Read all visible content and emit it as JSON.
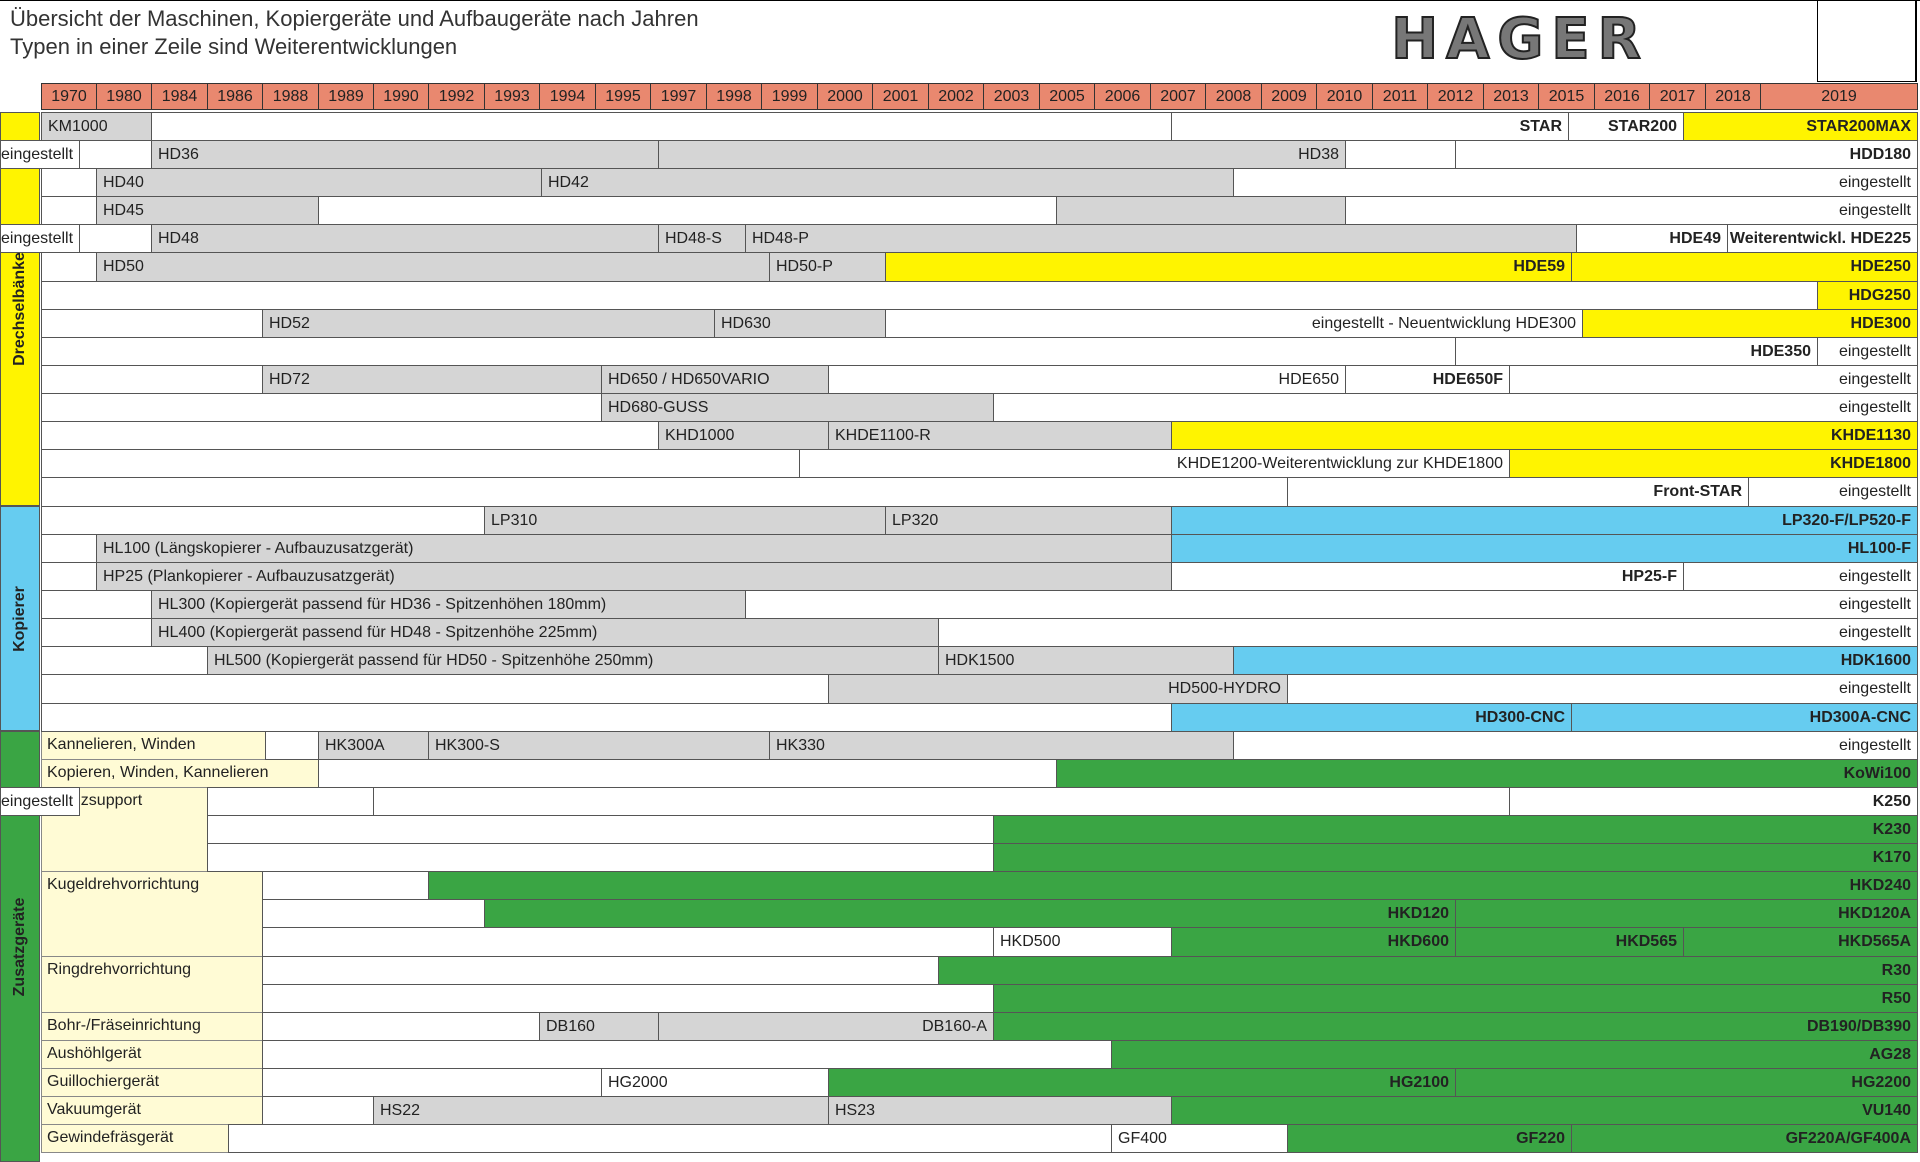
{
  "header": {
    "title": "Übersicht der Maschinen, Kopiergeräte und Aufbaugeräte nach Jahren",
    "subtitle": "Typen in einer Zeile sind Weiterentwicklungen",
    "logo": "HAGER"
  },
  "years": [
    "1970",
    "1980",
    "1984",
    "1986",
    "1988",
    "1989",
    "1990",
    "1992",
    "1993",
    "1994",
    "1995",
    "1997",
    "1998",
    "1999",
    "2000",
    "2001",
    "2002",
    "2003",
    "2005",
    "2006",
    "2007",
    "2008",
    "2009",
    "2010",
    "2011",
    "2012",
    "2013",
    "2015",
    "2016",
    "2017",
    "2018",
    "2019"
  ],
  "colors": {
    "white": "#ffffff",
    "gray": "#d5d5d5",
    "yellow": "#fff400",
    "cyan": "#66ccf0",
    "green": "#3aa544",
    "year_header": "#e9886f",
    "subcategory": "#fffbd5"
  },
  "categories": [
    {
      "label": "Drechselbänke",
      "color": "#fff400"
    },
    {
      "label": "Kopierer",
      "color": "#66ccf0"
    },
    {
      "label": "Zusatzgeräte",
      "color": "#3aa544"
    }
  ],
  "subcategories": [
    {
      "label": "Kannelieren, Winden"
    },
    {
      "label": "Kopieren, Winden, Kannelieren"
    },
    {
      "label": "Kreuzsupport"
    },
    {
      "label": "Kugeldrehvorrichtung"
    },
    {
      "label": "Ringdrehvorrichtung"
    },
    {
      "label": "Bohr-/Fräseinrichtung"
    },
    {
      "label": "Aushöhlgerät"
    },
    {
      "label": "Guillochiergerät"
    },
    {
      "label": "Vakuumgerät"
    },
    {
      "label": "Gewindefräsgerät"
    }
  ],
  "rows": [
    [
      {
        "text": "KM1000",
        "c": "gray"
      },
      {
        "text": "",
        "c": "white"
      },
      {
        "text": "STAR",
        "c": "white",
        "al": "r",
        "b": true
      },
      {
        "text": "STAR200",
        "c": "white",
        "al": "r",
        "b": true
      },
      {
        "text": "STAR200MAX",
        "c": "yellow",
        "al": "r",
        "b": true
      }
    ],
    [
      {
        "text": "",
        "c": "white"
      },
      {
        "text": "HD36",
        "c": "gray"
      },
      {
        "text": "HD38",
        "c": "gray",
        "al": "r"
      },
      {
        "text": "",
        "c": "white"
      },
      {
        "text": "HDD180",
        "c": "white",
        "al": "r",
        "b": true
      },
      {
        "text": "eingestellt",
        "c": "white",
        "al": "r"
      }
    ],
    [
      {
        "text": "",
        "c": "white"
      },
      {
        "text": "HD40",
        "c": "gray"
      },
      {
        "text": "HD42",
        "c": "gray"
      },
      {
        "text": "eingestellt",
        "c": "white",
        "al": "r"
      }
    ],
    [
      {
        "text": "",
        "c": "white"
      },
      {
        "text": "HD45",
        "c": "gray"
      },
      {
        "text": "",
        "c": "white"
      },
      {
        "text": "",
        "c": "gray"
      },
      {
        "text": "eingestellt",
        "c": "white",
        "al": "r"
      }
    ],
    [
      {
        "text": "",
        "c": "white"
      },
      {
        "text": "HD48",
        "c": "gray"
      },
      {
        "text": "HD48-S",
        "c": "gray"
      },
      {
        "text": "HD48-P",
        "c": "gray"
      },
      {
        "text": "HDE49",
        "c": "white",
        "al": "r",
        "b": true
      },
      {
        "text": "Weiterentwickl. HDE225",
        "c": "white",
        "al": "r",
        "b": true
      },
      {
        "text": "eingestellt",
        "c": "white",
        "al": "r"
      }
    ],
    [
      {
        "text": "",
        "c": "white"
      },
      {
        "text": "HD50",
        "c": "gray"
      },
      {
        "text": "HD50-P",
        "c": "gray"
      },
      {
        "text": "HDE59",
        "c": "yellow",
        "al": "r",
        "b": true
      },
      {
        "text": "HDE250",
        "c": "yellow",
        "al": "r",
        "b": true
      }
    ],
    [
      {
        "text": "",
        "c": "white"
      },
      {
        "text": "HDG250",
        "c": "yellow",
        "al": "r",
        "b": true
      }
    ],
    [
      {
        "text": "",
        "c": "white"
      },
      {
        "text": "HD52",
        "c": "gray"
      },
      {
        "text": "HD630",
        "c": "gray"
      },
      {
        "text": "eingestellt - Neuentwicklung HDE300",
        "c": "white",
        "al": "r"
      },
      {
        "text": "HDE300",
        "c": "yellow",
        "al": "r",
        "b": true
      }
    ],
    [
      {
        "text": "",
        "c": "white"
      },
      {
        "text": "HDE350",
        "c": "white",
        "al": "r",
        "b": true
      },
      {
        "text": "eingestellt",
        "c": "white",
        "al": "r"
      }
    ],
    [
      {
        "text": "",
        "c": "white"
      },
      {
        "text": "HD72",
        "c": "gray"
      },
      {
        "text": "HD650 / HD650VARIO",
        "c": "gray"
      },
      {
        "text": "HDE650",
        "c": "white",
        "al": "r"
      },
      {
        "text": "HDE650F",
        "c": "white",
        "al": "r",
        "b": true
      },
      {
        "text": "eingestellt",
        "c": "white",
        "al": "r"
      }
    ],
    [
      {
        "text": "",
        "c": "white"
      },
      {
        "text": "HD680-GUSS",
        "c": "gray"
      },
      {
        "text": "eingestellt",
        "c": "white",
        "al": "r"
      }
    ],
    [
      {
        "text": "",
        "c": "white"
      },
      {
        "text": "KHD1000",
        "c": "gray"
      },
      {
        "text": "KHDE1100-R",
        "c": "gray"
      },
      {
        "text": "KHDE1130",
        "c": "yellow",
        "al": "r",
        "b": true
      }
    ],
    [
      {
        "text": "",
        "c": "white"
      },
      {
        "text": "KHDE1200-Weiterentwicklung zur KHDE1800",
        "c": "white",
        "al": "r"
      },
      {
        "text": "KHDE1800",
        "c": "yellow",
        "al": "r",
        "b": true
      }
    ],
    [
      {
        "text": "",
        "c": "white"
      },
      {
        "text": "Front-STAR",
        "c": "white",
        "al": "r",
        "b": true
      },
      {
        "text": "eingestellt",
        "c": "white",
        "al": "r"
      }
    ],
    [
      {
        "text": "",
        "c": "white"
      },
      {
        "text": "LP310",
        "c": "gray"
      },
      {
        "text": "LP320",
        "c": "gray"
      },
      {
        "text": "LP320-F/LP520-F",
        "c": "cyan",
        "al": "r",
        "b": true
      }
    ],
    [
      {
        "text": "",
        "c": "white"
      },
      {
        "text": "HL100 (Längskopierer - Aufbauzusatzgerät)",
        "c": "gray"
      },
      {
        "text": "HL100-F",
        "c": "cyan",
        "al": "r",
        "b": true
      }
    ],
    [
      {
        "text": "",
        "c": "white"
      },
      {
        "text": "HP25 (Plankopierer - Aufbauzusatzgerät)",
        "c": "gray"
      },
      {
        "text": "HP25-F",
        "c": "white",
        "al": "r",
        "b": true
      },
      {
        "text": "eingestellt",
        "c": "white",
        "al": "r"
      }
    ],
    [
      {
        "text": "",
        "c": "white"
      },
      {
        "text": "HL300 (Kopiergerät passend für HD36 - Spitzenhöhen 180mm)",
        "c": "gray"
      },
      {
        "text": "eingestellt",
        "c": "white",
        "al": "r"
      }
    ],
    [
      {
        "text": "",
        "c": "white"
      },
      {
        "text": "HL400 (Kopiergerät passend für HD48 - Spitzenhöhe 225mm)",
        "c": "gray"
      },
      {
        "text": "eingestellt",
        "c": "white",
        "al": "r"
      }
    ],
    [
      {
        "text": "",
        "c": "white"
      },
      {
        "text": "HL500 (Kopiergerät passend für HD50 - Spitzenhöhe 250mm)",
        "c": "gray"
      },
      {
        "text": "HDK1500",
        "c": "gray"
      },
      {
        "text": "HDK1600",
        "c": "cyan",
        "al": "r",
        "b": true
      }
    ],
    [
      {
        "text": "",
        "c": "white"
      },
      {
        "text": "HD500-HYDRO",
        "c": "gray",
        "al": "r"
      },
      {
        "text": "eingestellt",
        "c": "white",
        "al": "r"
      }
    ],
    [
      {
        "text": "",
        "c": "white"
      },
      {
        "text": "HD300-CNC",
        "c": "cyan",
        "al": "r",
        "b": true
      },
      {
        "text": "HD300A-CNC",
        "c": "cyan",
        "al": "r",
        "b": true
      }
    ],
    [
      {
        "text": "",
        "c": "white"
      },
      {
        "text": "HK300A",
        "c": "gray"
      },
      {
        "text": "HK300-S",
        "c": "gray"
      },
      {
        "text": "HK330",
        "c": "gray"
      },
      {
        "text": "eingestellt",
        "c": "white",
        "al": "r"
      }
    ],
    [
      {
        "text": "",
        "c": "white"
      },
      {
        "text": "KoWi100",
        "c": "green",
        "al": "r",
        "b": true
      }
    ],
    [
      {
        "text": "",
        "c": "white"
      },
      {
        "text": "",
        "c": "white"
      },
      {
        "text": "K250",
        "c": "white",
        "al": "r",
        "b": true
      },
      {
        "text": "eingestellt",
        "c": "white",
        "al": "r"
      }
    ],
    [
      {
        "text": "",
        "c": "white"
      },
      {
        "text": "K230",
        "c": "green",
        "al": "r",
        "b": true
      }
    ],
    [
      {
        "text": "",
        "c": "white"
      },
      {
        "text": "K170",
        "c": "green",
        "al": "r",
        "b": true
      }
    ],
    [
      {
        "text": "",
        "c": "white"
      },
      {
        "text": "HKD240",
        "c": "green",
        "al": "r",
        "b": true
      }
    ],
    [
      {
        "text": "",
        "c": "white"
      },
      {
        "text": "HKD120",
        "c": "green",
        "al": "r",
        "b": true
      },
      {
        "text": "HKD120A",
        "c": "green",
        "al": "r",
        "b": true
      }
    ],
    [
      {
        "text": "",
        "c": "white"
      },
      {
        "text": "HKD500",
        "c": "white"
      },
      {
        "text": "HKD600",
        "c": "green",
        "al": "r",
        "b": true
      },
      {
        "text": "HKD565",
        "c": "green",
        "al": "r",
        "b": true
      },
      {
        "text": "HKD565A",
        "c": "green",
        "al": "r",
        "b": true
      }
    ],
    [
      {
        "text": "",
        "c": "white"
      },
      {
        "text": "R30",
        "c": "green",
        "al": "r",
        "b": true
      }
    ],
    [
      {
        "text": "",
        "c": "white"
      },
      {
        "text": "R50",
        "c": "green",
        "al": "r",
        "b": true
      }
    ],
    [
      {
        "text": "",
        "c": "white"
      },
      {
        "text": "DB160",
        "c": "gray"
      },
      {
        "text": "DB160-A",
        "c": "gray",
        "al": "r"
      },
      {
        "text": "DB190/DB390",
        "c": "green",
        "al": "r",
        "b": true
      }
    ],
    [
      {
        "text": "",
        "c": "white"
      },
      {
        "text": "AG28",
        "c": "green",
        "al": "r",
        "b": true
      }
    ],
    [
      {
        "text": "",
        "c": "white"
      },
      {
        "text": "HG2000",
        "c": "white"
      },
      {
        "text": "HG2100",
        "c": "green",
        "al": "r",
        "b": true
      },
      {
        "text": "HG2200",
        "c": "green",
        "al": "r",
        "b": true
      }
    ],
    [
      {
        "text": "",
        "c": "white"
      },
      {
        "text": "HS22",
        "c": "gray"
      },
      {
        "text": "HS23",
        "c": "gray"
      },
      {
        "text": "VU140",
        "c": "green",
        "al": "r",
        "b": true
      }
    ],
    [
      {
        "text": "",
        "c": "white"
      },
      {
        "text": "GF400",
        "c": "white"
      },
      {
        "text": "GF220",
        "c": "green",
        "al": "r",
        "b": true
      },
      {
        "text": "GF220A/GF400A",
        "c": "green",
        "al": "r",
        "b": true
      }
    ]
  ]
}
